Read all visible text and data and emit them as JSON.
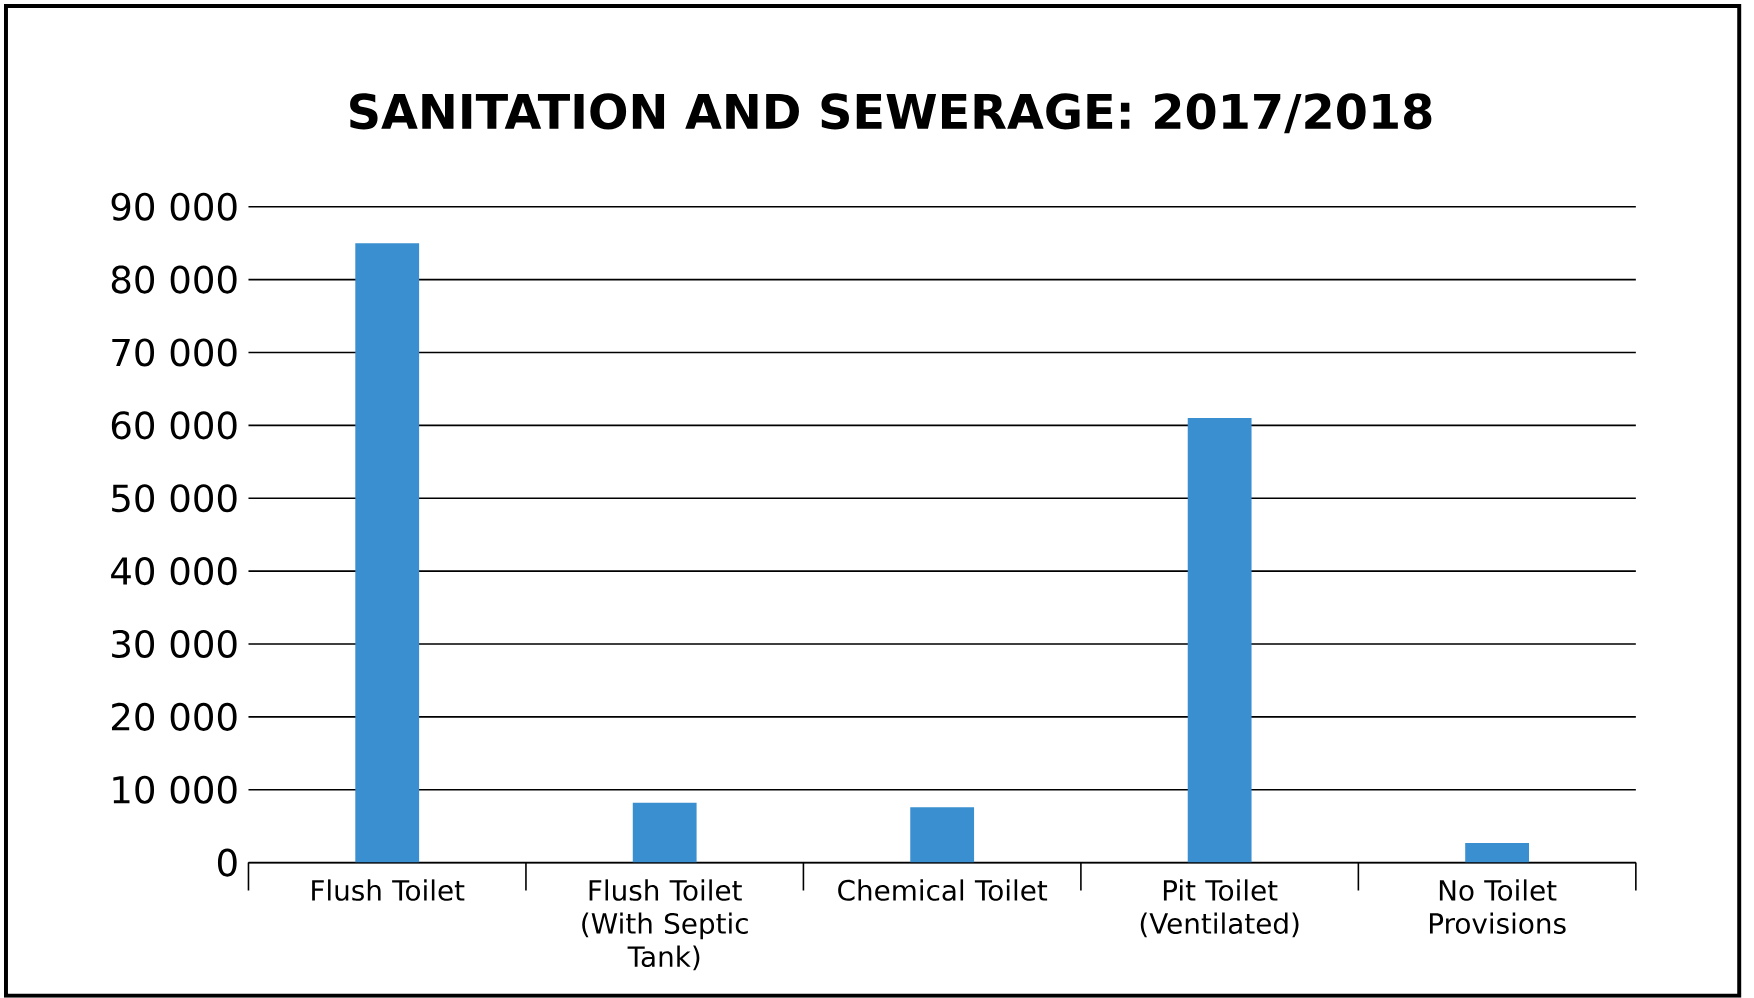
{
  "chart_data": {
    "type": "bar",
    "title": "SANITATION AND SEWERAGE: 2017/2018",
    "categories": [
      "Flush Toilet",
      "Flush Toilet (With Septic Tank)",
      "Chemical Toilet",
      "Pit Toilet (Ventilated)",
      "No Toilet Provisions"
    ],
    "values": [
      85000,
      8200,
      7600,
      61000,
      2700
    ],
    "color": "#3a8fd0",
    "ylim": [
      0,
      90000
    ],
    "yticks": [
      0,
      {
        "value": 10000,
        "label": "10 000"
      },
      {
        "value": 20000,
        "label": "20 000"
      },
      {
        "value": 30000,
        "label": "30 000"
      },
      {
        "value": 40000,
        "label": "40 000"
      },
      {
        "value": 50000,
        "label": "50 000"
      },
      {
        "value": 60000,
        "label": "60 000"
      },
      {
        "value": 70000,
        "label": "70 000"
      },
      {
        "value": 80000,
        "label": "80 000"
      },
      {
        "value": 90000,
        "label": "90 000"
      }
    ],
    "grid": "y"
  }
}
